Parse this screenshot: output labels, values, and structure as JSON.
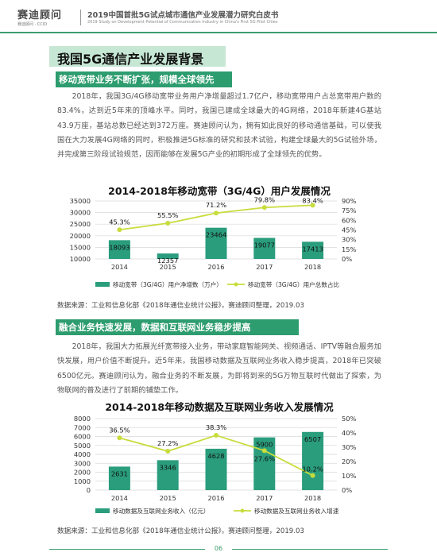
{
  "header": {
    "logo_main": "赛迪顾问",
    "logo_sub": "赛迪顾问 · CCID",
    "title": "2019中国首批5G试点城市通信产业发展潜力研究白皮书",
    "subtitle": "2019 Study on Development Potential of Communication Industry in China's First 5G Pilot Cities"
  },
  "section": {
    "title": "我国5G通信产业发展背景"
  },
  "block1": {
    "subtitle": "移动宽带业务不断扩张，规模全球领先",
    "paragraph": "2018年，我国3G/4G移动宽带业务用户净增量超过1.7亿户，移动宽带用户占总宽带用户数的83.4%，达到近5年来的顶峰水平。同时，我国已建成全球最大的4G网络，2018年新建4G基站43.9万座，基站总数已经达到372万座。赛迪顾问认为，拥有如此良好的移动通信基础，可以使我国在大力发展4G网络的同时，积极推进5G标准的研究和技术试验，构建全球最大的5G试验外场，并完成第三阶段试验规范，因而能够在发展5G产业的初期形成了全球领先的优势。",
    "source": "数据来源：工业和信息化部《2018年通信业统计公报》，赛迪顾问整理，2019.03"
  },
  "block2": {
    "subtitle": "融合业务快速发展，数据和互联网业务稳步提高",
    "paragraph": "2018年，我国大力拓展光纤宽带接入业务，带动家庭智能网关、视频通话、IPTV等融合服务加快发展，用户价值不断提升。近5年来，我国移动数据及互联网业务收入稳步提高，2018年已突破6500亿元。赛迪顾问认为，融合业务的不断发展，为即将到来的5G万物互联时代做出了探索，为物联网的普及进行了前期的铺垫工作。",
    "source": "数据来源：工业和信息化部《2018年通信业统计公报》，赛迪顾问整理，2019.03"
  },
  "chart_data": [
    {
      "type": "bar",
      "title": "2014-2018年移动宽带（3G/4G）用户发展情况",
      "categories": [
        "2014",
        "2015",
        "2016",
        "2017",
        "2018"
      ],
      "bar_color": "#2a9d7c",
      "line_color": "#c8dc3c",
      "series": [
        {
          "name": "移动宽带（3G/4G）用户净增数（万户）",
          "type": "bar",
          "axis": "left",
          "values": [
            18093,
            12357,
            23464,
            19077,
            17413
          ],
          "labels": [
            "18093",
            "12357",
            "23464",
            "19077",
            "17413"
          ]
        },
        {
          "name": "移动宽带（3G/4G）用户总数占比",
          "type": "line",
          "axis": "right",
          "values": [
            45.3,
            55.5,
            71.2,
            79.8,
            83.4
          ],
          "labels": [
            "45.3%",
            "55.5%",
            "71.2%",
            "79.8%",
            "83.4%"
          ]
        }
      ],
      "ylim": [
        10000,
        35000
      ],
      "y_ticks": [
        "10000",
        "15000",
        "20000",
        "25000",
        "30000",
        "35000"
      ],
      "y2lim": [
        0,
        90
      ],
      "y2_ticks": [
        "0%",
        "15%",
        "30%",
        "45%",
        "60%",
        "75%",
        "90%"
      ],
      "grid": true,
      "legend": "bottom"
    },
    {
      "type": "bar",
      "title": "2014-2018年移动数据及互联网业务收入发展情况",
      "categories": [
        "2014",
        "2015",
        "2016",
        "2017",
        "2018"
      ],
      "bar_color": "#2a9d7c",
      "line_color": "#c8dc3c",
      "series": [
        {
          "name": "移动数据及互联网业务收入（亿元）",
          "type": "bar",
          "axis": "left",
          "values": [
            2631,
            3346,
            4628,
            5900,
            6507
          ],
          "labels": [
            "2631",
            "3346",
            "4628",
            "5900",
            "6507"
          ]
        },
        {
          "name": "移动数据及互联网业务收入增速",
          "type": "line",
          "axis": "right",
          "values": [
            36.5,
            27.2,
            38.3,
            27.6,
            10.2
          ],
          "labels": [
            "36.5%",
            "27.2%",
            "38.3%",
            "27.6%",
            "10.2%"
          ]
        }
      ],
      "ylim": [
        0,
        8000
      ],
      "y_ticks": [
        "0",
        "1000",
        "2000",
        "3000",
        "4000",
        "5000",
        "6000",
        "7000",
        "8000"
      ],
      "y2lim": [
        0,
        50
      ],
      "y2_ticks": [
        "0%",
        "10%",
        "20%",
        "30%",
        "40%",
        "50%"
      ],
      "grid": true,
      "legend": "bottom"
    }
  ],
  "footer": {
    "page": "06"
  }
}
